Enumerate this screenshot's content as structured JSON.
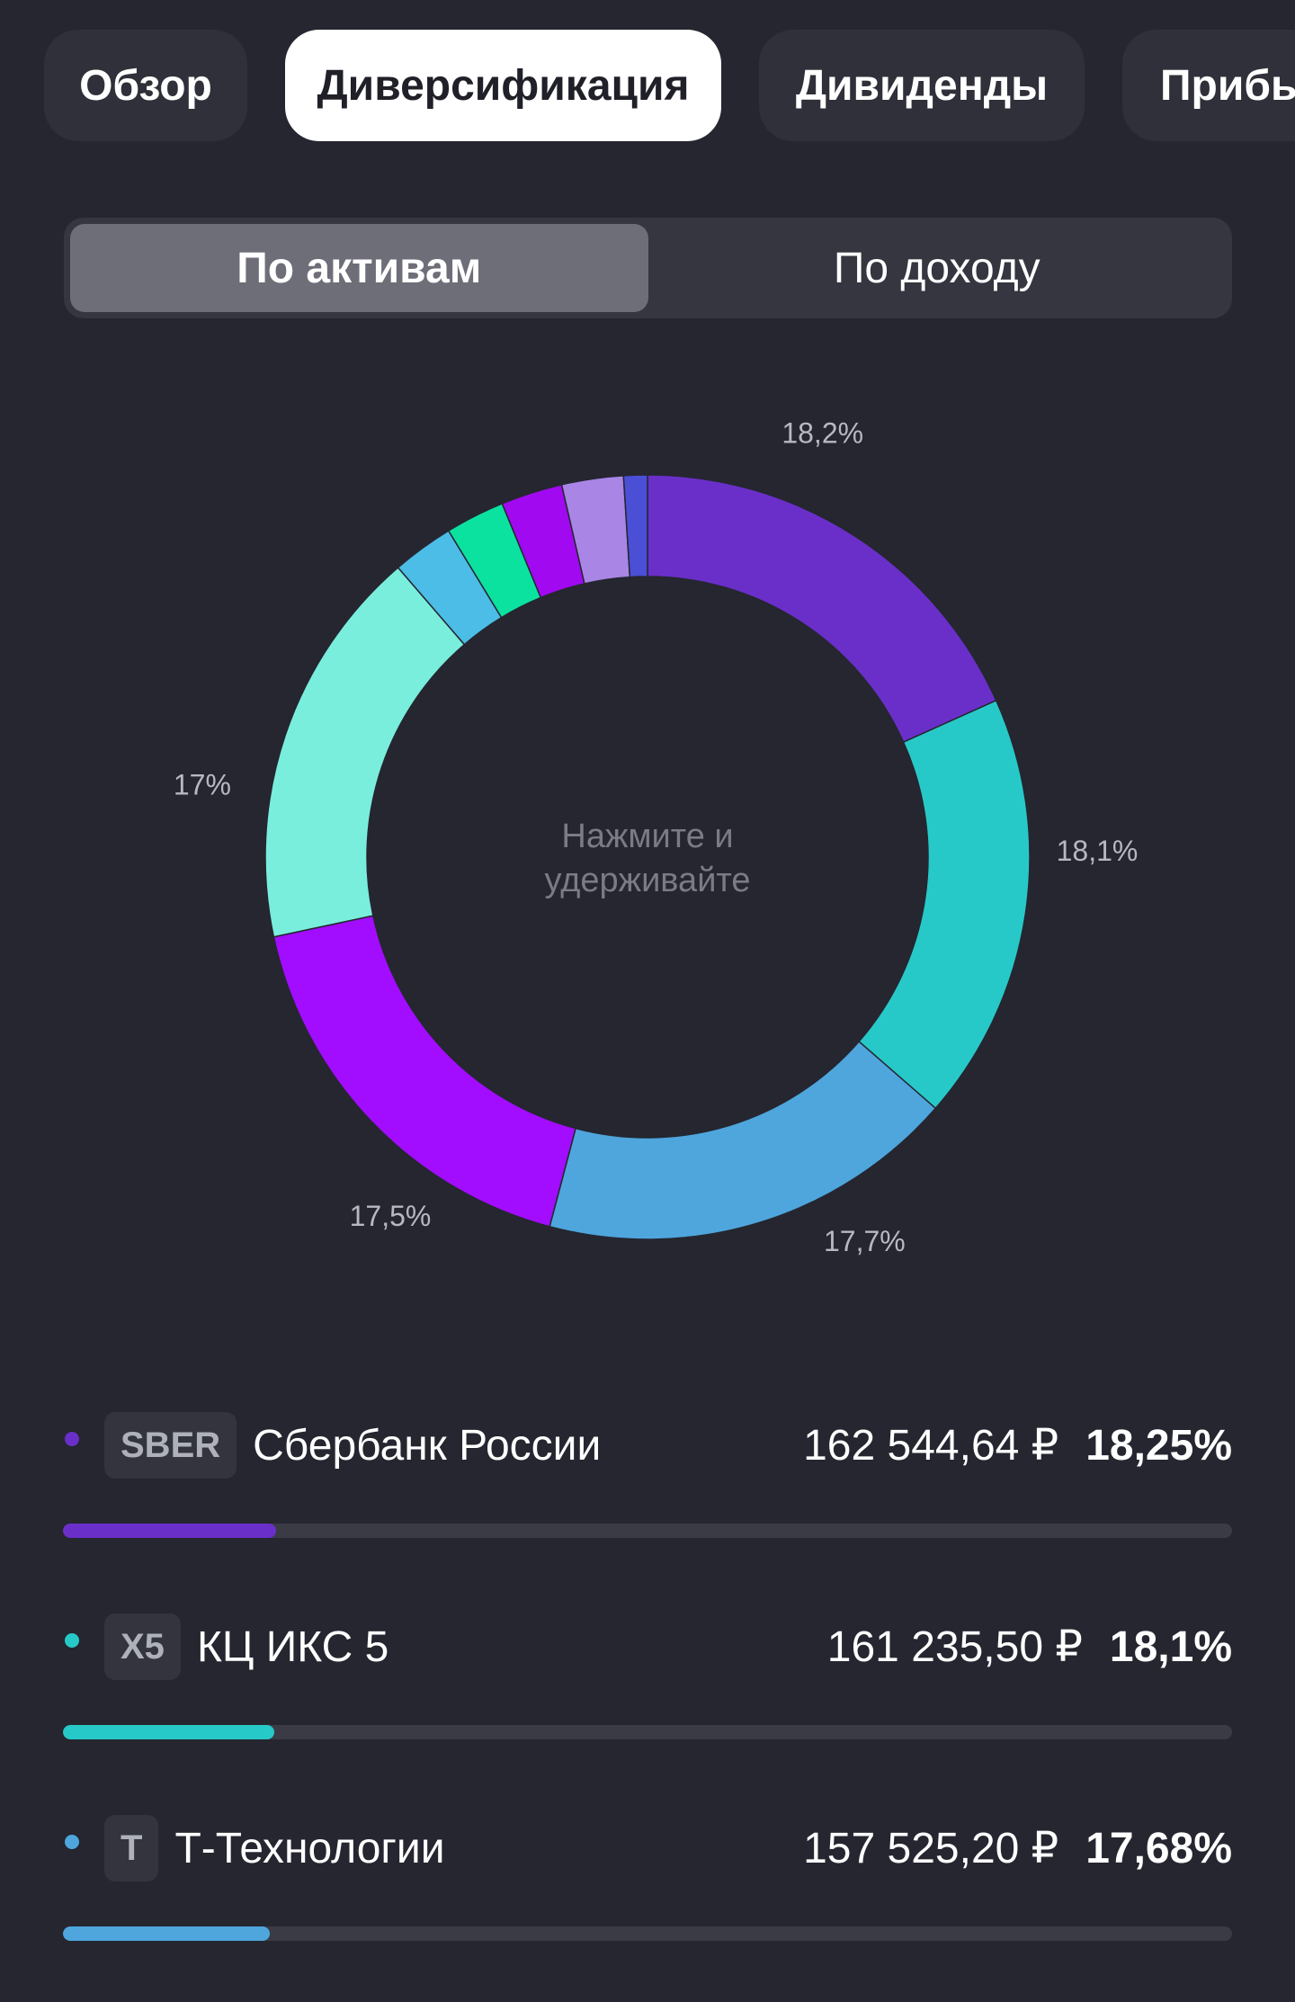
{
  "tabs": [
    {
      "label": "Обзор",
      "active": false
    },
    {
      "label": "Диверсификация",
      "active": true
    },
    {
      "label": "Дивиденды",
      "active": false
    },
    {
      "label": "Прибы",
      "active": false
    }
  ],
  "segment": {
    "by_assets": "По активам",
    "by_income": "По доходу",
    "active": "by_assets"
  },
  "chart": {
    "center_line1": "Нажмите и",
    "center_line2": "удерживайте"
  },
  "chart_data": {
    "type": "pie",
    "slices": [
      {
        "value": 18.25,
        "color": "#6a2fc9",
        "label": "18,2%"
      },
      {
        "value": 18.1,
        "color": "#27c9c8",
        "label": "18,1%"
      },
      {
        "value": 17.68,
        "color": "#4ea6dd",
        "label": "17,7%"
      },
      {
        "value": 17.5,
        "color": "#a20cff",
        "label": "17,5%"
      },
      {
        "value": 17.0,
        "color": "#7aeedd",
        "label": "17%"
      },
      {
        "value": 2.6,
        "color": "#4bbde6",
        "label": ""
      },
      {
        "value": 2.5,
        "color": "#0ce2a0",
        "label": ""
      },
      {
        "value": 2.6,
        "color": "#a109f0",
        "label": ""
      },
      {
        "value": 2.6,
        "color": "#a985e6",
        "label": ""
      },
      {
        "value": 1.0,
        "color": "#4a4fd6",
        "label": ""
      }
    ]
  },
  "holdings": [
    {
      "ticker": "SBER",
      "name": "Сбербанк России",
      "value": "162 544,64 ₽",
      "percent": "18,25%",
      "share": 0.1825,
      "color": "#6a2fc9"
    },
    {
      "ticker": "X5",
      "name": "КЦ ИКС 5",
      "value": "161 235,50 ₽",
      "percent": "18,1%",
      "share": 0.181,
      "color": "#27c9c8"
    },
    {
      "ticker": "T",
      "name": "Т-Технологии",
      "value": "157 525,20 ₽",
      "percent": "17,68%",
      "share": 0.1768,
      "color": "#4ea6dd"
    }
  ]
}
